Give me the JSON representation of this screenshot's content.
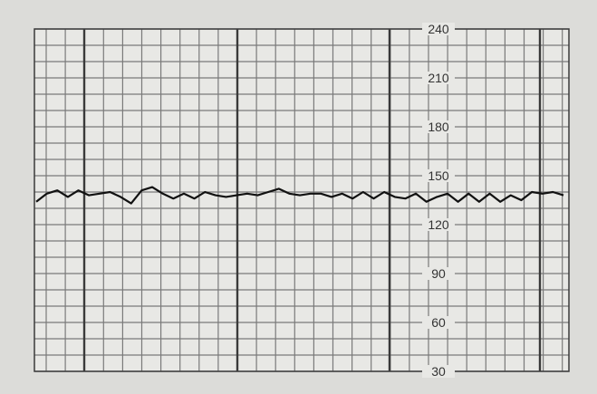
{
  "chart_data": {
    "type": "line",
    "title": "",
    "xlabel": "",
    "ylabel": "",
    "ylim": [
      30,
      240
    ],
    "yticks": [
      30,
      60,
      90,
      120,
      150,
      180,
      210,
      240
    ],
    "grid": true,
    "minor_grid_step": 10,
    "colors": {
      "paper": "#e8e8e5",
      "grid": "#7a7a7a",
      "major_grid": "#3a3a3a",
      "trace": "#111111"
    },
    "series": [
      {
        "values": [
          134,
          139,
          141,
          137,
          141,
          138,
          139,
          140,
          137,
          133,
          141,
          143,
          139,
          136,
          139,
          136,
          140,
          138,
          137,
          138,
          139,
          138,
          140,
          142,
          139,
          138,
          139,
          139,
          137,
          139,
          136,
          140,
          136,
          140,
          137,
          136,
          139,
          134,
          137,
          139,
          134,
          139,
          134,
          139,
          134,
          138,
          135,
          140,
          139,
          140,
          138
        ]
      }
    ]
  }
}
